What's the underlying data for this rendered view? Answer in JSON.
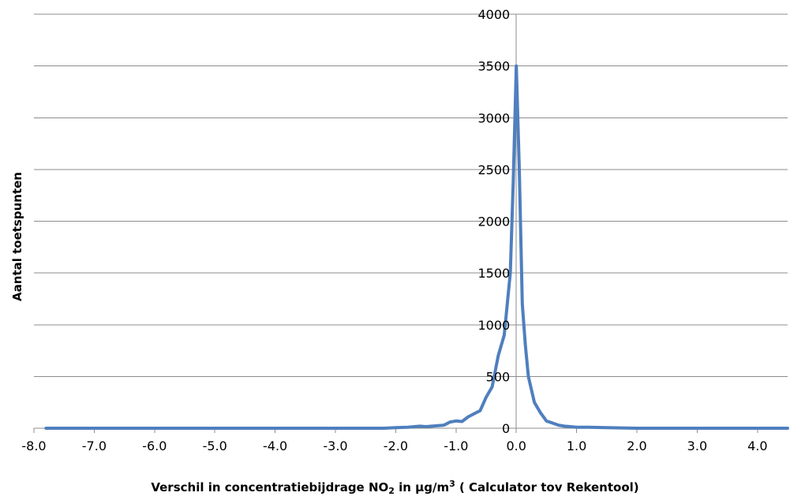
{
  "chart_data": {
    "type": "line",
    "title": "",
    "xlabel": {
      "prefix": "Verschil in concentratiebijdrage NO",
      "subscript": "2",
      "middle": " in µg/m",
      "superscript": "3",
      "suffix": " ( Calculator tov Rekentool)"
    },
    "ylabel": "Aantal toetspunten",
    "xlim": [
      -8.0,
      4.5
    ],
    "ylim": [
      0,
      4000
    ],
    "x_ticks": [
      "-8.0",
      "-7.0",
      "-6.0",
      "-5.0",
      "-4.0",
      "-3.0",
      "-2.0",
      "-1.0",
      "0.0",
      "1.0",
      "2.0",
      "3.0",
      "4.0"
    ],
    "x_tick_values": [
      -8,
      -7,
      -6,
      -5,
      -4,
      -3,
      -2,
      -1,
      0,
      1,
      2,
      3,
      4
    ],
    "y_ticks": [
      "0",
      "500",
      "1000",
      "1500",
      "2000",
      "2500",
      "3000",
      "3500",
      "4000"
    ],
    "y_tick_values": [
      0,
      500,
      1000,
      1500,
      2000,
      2500,
      3000,
      3500,
      4000
    ],
    "grid": true,
    "series_color": "#4f7fbe",
    "series": [
      {
        "x": [
          -7.8,
          -7.0,
          -6.0,
          -5.0,
          -4.0,
          -3.5,
          -3.0,
          -2.5,
          -2.2,
          -2.0,
          -1.8,
          -1.6,
          -1.5,
          -1.4,
          -1.3,
          -1.2,
          -1.1,
          -1.0,
          -0.9,
          -0.8,
          -0.7,
          -0.6,
          -0.5,
          -0.4,
          -0.3,
          -0.2,
          -0.1,
          -0.05,
          0.0,
          0.05,
          0.1,
          0.15,
          0.2,
          0.3,
          0.4,
          0.5,
          0.6,
          0.7,
          0.8,
          0.9,
          1.0,
          1.2,
          1.5,
          2.0,
          2.5,
          3.0,
          3.5,
          4.0,
          4.5
        ],
        "y": [
          0,
          0,
          0,
          0,
          0,
          0,
          0,
          0,
          0,
          5,
          10,
          20,
          15,
          20,
          25,
          30,
          60,
          70,
          65,
          110,
          140,
          170,
          300,
          400,
          700,
          900,
          1500,
          2400,
          3500,
          2500,
          1200,
          800,
          500,
          250,
          150,
          70,
          50,
          30,
          20,
          15,
          10,
          10,
          5,
          0,
          0,
          0,
          0,
          0,
          0
        ]
      }
    ]
  }
}
